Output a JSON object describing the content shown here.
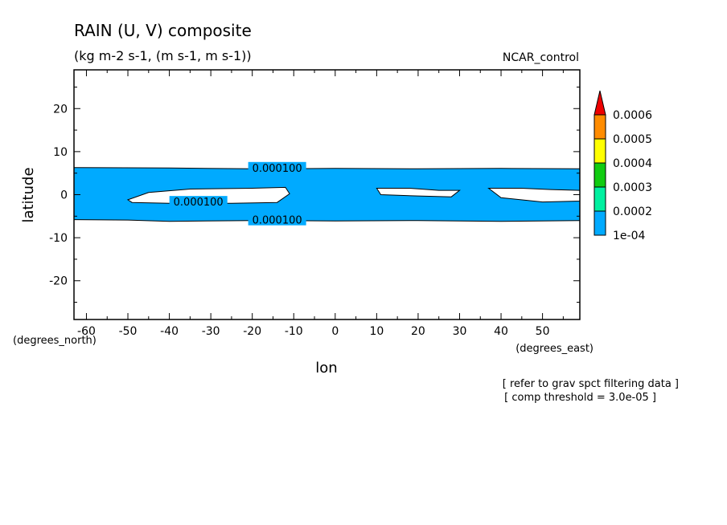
{
  "chart_data": {
    "type": "contour",
    "title": "RAIN (U, V) composite",
    "subtitle": "(kg m-2 s-1, (m s-1, m s-1))",
    "case_label": "NCAR_control",
    "xlabel": "lon",
    "ylabel": "latitude",
    "x_units": "(degrees_east)",
    "y_units": "(degrees_north)",
    "xlim": [
      -63,
      59
    ],
    "ylim": [
      -29,
      29
    ],
    "x_ticks": [
      -60,
      -50,
      -40,
      -30,
      -20,
      -10,
      0,
      10,
      20,
      30,
      40,
      50
    ],
    "x_tick_labels": [
      "-60",
      "-50",
      "-40",
      "-30",
      "-20",
      "-10",
      "0",
      "10",
      "20",
      "30",
      "40",
      "50"
    ],
    "y_ticks": [
      20,
      10,
      0,
      -10,
      -20
    ],
    "y_tick_labels": [
      "20",
      "10",
      "0",
      "-10",
      "-20"
    ],
    "fill_color": "#00aaff",
    "band_outer": {
      "north": [
        [
          -63,
          6.3
        ],
        [
          -40,
          6.2
        ],
        [
          -20,
          6.0
        ],
        [
          0,
          6.1
        ],
        [
          20,
          6.0
        ],
        [
          40,
          6.1
        ],
        [
          59,
          6.0
        ]
      ],
      "south": [
        [
          -63,
          -5.8
        ],
        [
          -50,
          -5.9
        ],
        [
          -40,
          -6.2
        ],
        [
          -20,
          -6.0
        ],
        [
          0,
          -6.1
        ],
        [
          20,
          -6.0
        ],
        [
          40,
          -6.2
        ],
        [
          59,
          -6.0
        ]
      ]
    },
    "holes": [
      [
        [
          -50,
          -1.2
        ],
        [
          -45,
          0.5
        ],
        [
          -35,
          1.3
        ],
        [
          -20,
          1.5
        ],
        [
          -12,
          1.7
        ],
        [
          -11,
          0.2
        ],
        [
          -14,
          -1.8
        ],
        [
          -25,
          -2.0
        ],
        [
          -40,
          -2.0
        ],
        [
          -49,
          -1.8
        ]
      ],
      [
        [
          10,
          1.5
        ],
        [
          18,
          1.5
        ],
        [
          25,
          1.0
        ],
        [
          30,
          1.0
        ],
        [
          28,
          -0.5
        ],
        [
          20,
          -0.3
        ],
        [
          11,
          0.0
        ]
      ],
      [
        [
          37,
          1.5
        ],
        [
          45,
          1.5
        ],
        [
          52,
          1.2
        ],
        [
          59,
          1.0
        ],
        [
          59,
          -1.5
        ],
        [
          50,
          -1.7
        ],
        [
          40,
          -0.7
        ]
      ]
    ],
    "contour_labels": [
      {
        "text": "0.000100",
        "lon": -14,
        "lat": 6.1
      },
      {
        "text": "0.000100",
        "lon": -33,
        "lat": -1.8
      },
      {
        "text": "0.000100",
        "lon": -14,
        "lat": -6.0
      }
    ],
    "colorbar": {
      "levels": [
        "0.0006",
        "0.0005",
        "0.0004",
        "0.0003",
        "0.0002",
        "1e-04"
      ],
      "colors": [
        "#ff8c00",
        "#ffff00",
        "#11cc11",
        "#00f0a0",
        "#00aaff"
      ],
      "overflow_color": "#ee0000"
    },
    "notes": [
      "[ refer to grav spct filtering data ]",
      "[ comp threshold = 3.0e-05 ]"
    ]
  }
}
